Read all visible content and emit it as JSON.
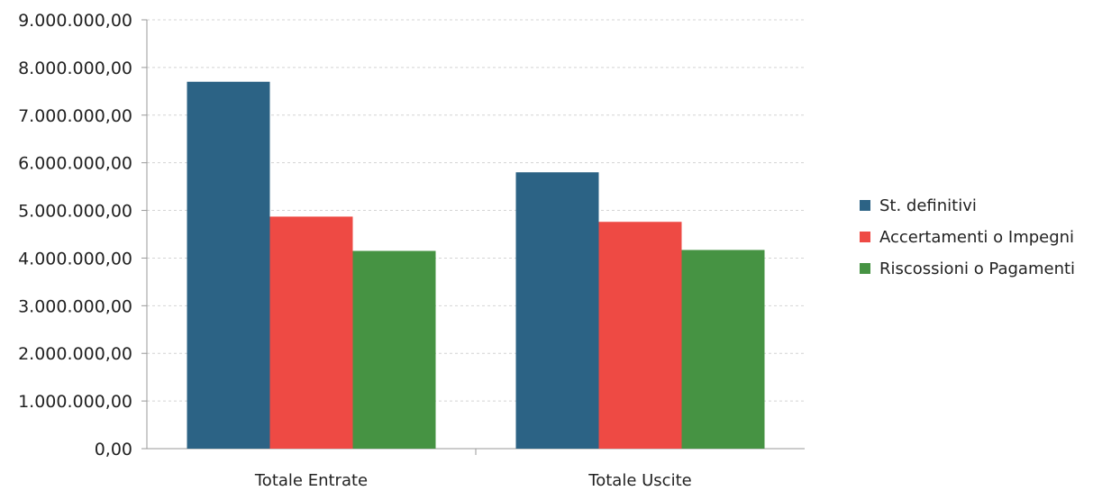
{
  "chart_data": {
    "type": "bar",
    "categories": [
      "Totale Entrate",
      "Totale Uscite"
    ],
    "series": [
      {
        "name": "St. definitivi",
        "values": [
          7700000,
          5800000
        ],
        "color": "#2c6385"
      },
      {
        "name": "Accertamenti o Impegni",
        "values": [
          4870000,
          4760000
        ],
        "color": "#ee4a44"
      },
      {
        "name": "Riscossioni o Pagamenti",
        "values": [
          4150000,
          4170000
        ],
        "color": "#469343"
      }
    ],
    "y_ticks": [
      "0,00",
      "1.000.000,00",
      "2.000.000,00",
      "3.000.000,00",
      "4.000.000,00",
      "5.000.000,00",
      "6.000.000,00",
      "7.000.000,00",
      "8.000.000,00",
      "9.000.000,00"
    ],
    "ylim": [
      0,
      9000000
    ],
    "grid": true,
    "legend_position": "right"
  }
}
